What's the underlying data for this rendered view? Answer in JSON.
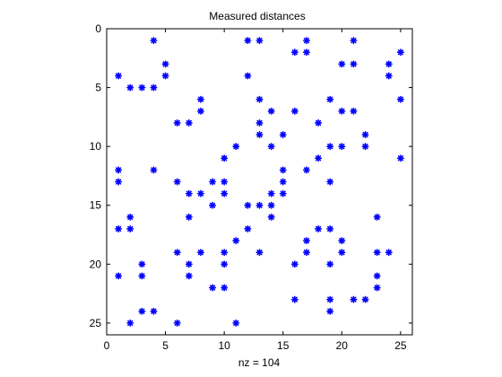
{
  "chart_data": {
    "type": "scatter",
    "title": "Measured distances",
    "xlabel": "nz = 104",
    "ylabel": "",
    "xlim": [
      0,
      26
    ],
    "ylim": [
      0,
      26
    ],
    "y_axis": "reversed",
    "grid": false,
    "marker": "*",
    "marker_color": "#0000FF",
    "xticks": [
      "0",
      "5",
      "10",
      "15",
      "20",
      "25"
    ],
    "yticks": [
      "0",
      "5",
      "10",
      "15",
      "20",
      "25"
    ],
    "points": [
      [
        4,
        1
      ],
      [
        12,
        1
      ],
      [
        13,
        1
      ],
      [
        17,
        1
      ],
      [
        21,
        1
      ],
      [
        16,
        2
      ],
      [
        17,
        2
      ],
      [
        25,
        2
      ],
      [
        5,
        3
      ],
      [
        20,
        3
      ],
      [
        21,
        3
      ],
      [
        24,
        3
      ],
      [
        1,
        4
      ],
      [
        5,
        4
      ],
      [
        12,
        4
      ],
      [
        24,
        4
      ],
      [
        2,
        5
      ],
      [
        3,
        5
      ],
      [
        4,
        5
      ],
      [
        8,
        6
      ],
      [
        13,
        6
      ],
      [
        19,
        6
      ],
      [
        25,
        6
      ],
      [
        8,
        7
      ],
      [
        14,
        7
      ],
      [
        16,
        7
      ],
      [
        20,
        7
      ],
      [
        21,
        7
      ],
      [
        6,
        8
      ],
      [
        7,
        8
      ],
      [
        13,
        8
      ],
      [
        18,
        8
      ],
      [
        13,
        9
      ],
      [
        15,
        9
      ],
      [
        22,
        9
      ],
      [
        11,
        10
      ],
      [
        14,
        10
      ],
      [
        19,
        10
      ],
      [
        20,
        10
      ],
      [
        22,
        10
      ],
      [
        10,
        11
      ],
      [
        18,
        11
      ],
      [
        25,
        11
      ],
      [
        1,
        12
      ],
      [
        4,
        12
      ],
      [
        15,
        12
      ],
      [
        17,
        12
      ],
      [
        1,
        13
      ],
      [
        6,
        13
      ],
      [
        9,
        13
      ],
      [
        10,
        13
      ],
      [
        15,
        13
      ],
      [
        19,
        13
      ],
      [
        7,
        14
      ],
      [
        8,
        14
      ],
      [
        10,
        14
      ],
      [
        14,
        14
      ],
      [
        15,
        14
      ],
      [
        9,
        15
      ],
      [
        12,
        15
      ],
      [
        13,
        15
      ],
      [
        14,
        15
      ],
      [
        2,
        16
      ],
      [
        7,
        16
      ],
      [
        14,
        16
      ],
      [
        23,
        16
      ],
      [
        1,
        17
      ],
      [
        2,
        17
      ],
      [
        12,
        17
      ],
      [
        18,
        17
      ],
      [
        19,
        17
      ],
      [
        11,
        18
      ],
      [
        17,
        18
      ],
      [
        20,
        18
      ],
      [
        6,
        19
      ],
      [
        8,
        19
      ],
      [
        10,
        19
      ],
      [
        13,
        19
      ],
      [
        17,
        19
      ],
      [
        20,
        19
      ],
      [
        23,
        19
      ],
      [
        24,
        19
      ],
      [
        3,
        20
      ],
      [
        7,
        20
      ],
      [
        10,
        20
      ],
      [
        16,
        20
      ],
      [
        19,
        20
      ],
      [
        1,
        21
      ],
      [
        3,
        21
      ],
      [
        7,
        21
      ],
      [
        23,
        21
      ],
      [
        9,
        22
      ],
      [
        10,
        22
      ],
      [
        23,
        22
      ],
      [
        16,
        23
      ],
      [
        19,
        23
      ],
      [
        21,
        23
      ],
      [
        22,
        23
      ],
      [
        3,
        24
      ],
      [
        4,
        24
      ],
      [
        19,
        24
      ],
      [
        2,
        25
      ],
      [
        6,
        25
      ],
      [
        11,
        25
      ]
    ]
  }
}
